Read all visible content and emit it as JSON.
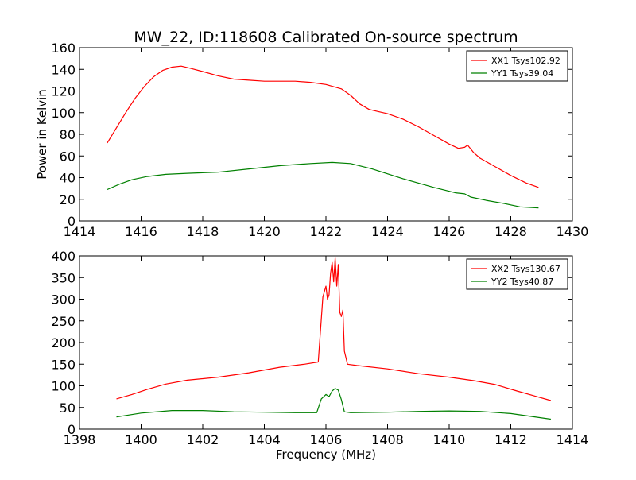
{
  "figure": {
    "title": "MW_22, ID:118608 Calibrated On-source spectrum",
    "ylabel": "Power in Kelvin",
    "xlabel": "Frequency (MHz)"
  },
  "colors": {
    "red": "#ff0000",
    "green": "#008000"
  },
  "chart_data": [
    {
      "type": "line",
      "title": "MW_22, ID:118608 Calibrated On-source spectrum",
      "ylabel": "Power in Kelvin",
      "xlabel": "",
      "xlim": [
        1414,
        1430
      ],
      "ylim": [
        0,
        160
      ],
      "xticks": [
        1414,
        1416,
        1418,
        1420,
        1422,
        1424,
        1426,
        1428,
        1430
      ],
      "yticks": [
        0,
        20,
        40,
        60,
        80,
        100,
        120,
        140,
        160
      ],
      "grid": false,
      "legend_position": "top-right",
      "series": [
        {
          "name": "XX1 Tsys102.92",
          "color": "#ff0000",
          "x": [
            1414.9,
            1415.2,
            1415.5,
            1415.8,
            1416.1,
            1416.4,
            1416.7,
            1417.0,
            1417.3,
            1417.6,
            1418.0,
            1418.5,
            1419.0,
            1419.5,
            1420.0,
            1420.5,
            1421.0,
            1421.5,
            1422.0,
            1422.5,
            1422.8,
            1423.1,
            1423.4,
            1423.7,
            1424.0,
            1424.5,
            1425.0,
            1425.5,
            1426.0,
            1426.3,
            1426.5,
            1426.6,
            1426.8,
            1427.0,
            1427.5,
            1428.0,
            1428.5,
            1428.9
          ],
          "y": [
            72,
            86,
            100,
            113,
            124,
            133,
            139,
            142,
            143,
            141,
            138,
            134,
            131,
            130,
            129,
            129,
            129,
            128,
            126,
            122,
            116,
            108,
            103,
            101,
            99,
            94,
            87,
            79,
            71,
            67,
            68,
            70,
            63,
            58,
            50,
            42,
            35,
            31
          ]
        },
        {
          "name": "YY1 Tsys39.04",
          "color": "#008000",
          "x": [
            1414.9,
            1415.3,
            1415.7,
            1416.2,
            1416.8,
            1417.5,
            1418.5,
            1419.5,
            1420.5,
            1421.5,
            1422.2,
            1422.8,
            1423.5,
            1424.5,
            1425.5,
            1426.2,
            1426.5,
            1426.7,
            1427.2,
            1427.8,
            1428.3,
            1428.9
          ],
          "y": [
            29,
            34,
            38,
            41,
            43,
            44,
            45,
            48,
            51,
            53,
            54,
            53,
            48,
            39,
            31,
            26,
            25,
            22,
            19,
            16,
            13,
            12
          ]
        }
      ]
    },
    {
      "type": "line",
      "title": "",
      "ylabel": "",
      "xlabel": "Frequency (MHz)",
      "xlim": [
        1398,
        1414
      ],
      "ylim": [
        0,
        400
      ],
      "xticks": [
        1398,
        1400,
        1402,
        1404,
        1406,
        1408,
        1410,
        1412,
        1414
      ],
      "yticks": [
        0,
        50,
        100,
        150,
        200,
        250,
        300,
        350,
        400
      ],
      "grid": false,
      "legend_position": "top-right",
      "series": [
        {
          "name": "XX2 Tsys130.67",
          "color": "#ff0000",
          "x": [
            1399.2,
            1399.7,
            1400.2,
            1400.8,
            1401.5,
            1402.5,
            1403.5,
            1404.5,
            1405.3,
            1405.75,
            1405.85,
            1405.9,
            1406.0,
            1406.05,
            1406.1,
            1406.15,
            1406.2,
            1406.25,
            1406.3,
            1406.35,
            1406.4,
            1406.45,
            1406.5,
            1406.55,
            1406.6,
            1406.7,
            1407.0,
            1408.0,
            1409.0,
            1410.0,
            1410.8,
            1411.5,
            1412.2,
            1412.8,
            1413.3
          ],
          "y": [
            70,
            80,
            92,
            104,
            113,
            120,
            130,
            143,
            150,
            155,
            255,
            305,
            330,
            300,
            310,
            360,
            385,
            340,
            395,
            330,
            380,
            270,
            260,
            275,
            180,
            150,
            147,
            139,
            128,
            120,
            112,
            103,
            88,
            76,
            66
          ],
          "peaks": [
            385,
            395,
            380
          ]
        },
        {
          "name": "YY2 Tsys40.87",
          "color": "#008000",
          "x": [
            1399.2,
            1400.0,
            1401.0,
            1402.0,
            1403.0,
            1404.0,
            1405.0,
            1405.7,
            1405.85,
            1406.0,
            1406.1,
            1406.2,
            1406.3,
            1406.4,
            1406.5,
            1406.6,
            1406.8,
            1408.0,
            1409.0,
            1410.0,
            1411.0,
            1412.0,
            1413.3
          ],
          "y": [
            28,
            37,
            43,
            43,
            40,
            39,
            38,
            38,
            70,
            80,
            75,
            88,
            94,
            90,
            68,
            40,
            38,
            39,
            41,
            42,
            41,
            36,
            23
          ]
        }
      ]
    }
  ]
}
